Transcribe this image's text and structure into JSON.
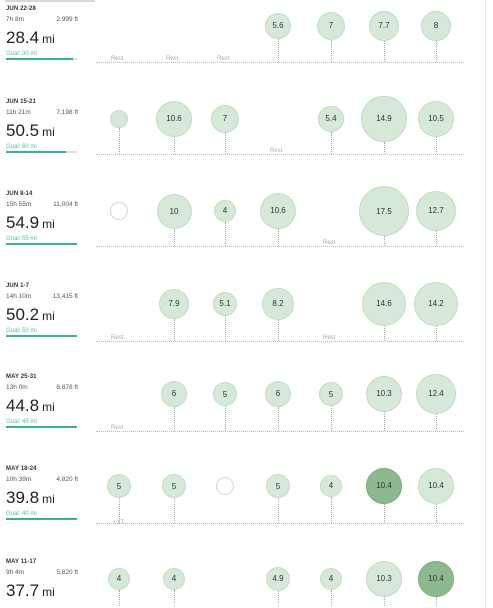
{
  "weeks": [
    {
      "label": "JUN 22-28",
      "time": "7h 8m",
      "elevation": "2,999 ft",
      "distance": "28.4",
      "unit": "mi",
      "goal": "Goal: 30 mi",
      "goal_progress": 0.95,
      "days": [
        {
          "type": "rest",
          "label": "Rest"
        },
        {
          "type": "rest",
          "label": "Rest"
        },
        {
          "type": "rest",
          "label": "Rest"
        },
        {
          "type": "run",
          "miles": 5.6,
          "label": "5.6"
        },
        {
          "type": "run",
          "miles": 7,
          "label": "7"
        },
        {
          "type": "run",
          "miles": 7.7,
          "label": "7.7"
        },
        {
          "type": "run",
          "miles": 8,
          "label": "8"
        }
      ]
    },
    {
      "label": "JUN 15-21",
      "time": "11h 21m",
      "elevation": "7,198 ft",
      "distance": "50.5",
      "unit": "mi",
      "goal": "Goal: 60 mi",
      "goal_progress": 0.84,
      "days": [
        {
          "type": "run",
          "miles": 2,
          "label": ""
        },
        {
          "type": "run",
          "miles": 10.6,
          "label": "10.6"
        },
        {
          "type": "run",
          "miles": 7,
          "label": "7"
        },
        {
          "type": "rest",
          "label": "Rest"
        },
        {
          "type": "run",
          "miles": 5.4,
          "label": "5.4"
        },
        {
          "type": "run",
          "miles": 14.9,
          "label": "14.9"
        },
        {
          "type": "run",
          "miles": 10.5,
          "label": "10.5"
        }
      ]
    },
    {
      "label": "JUN 8-14",
      "time": "15h 55m",
      "elevation": "11,004 ft",
      "distance": "54.9",
      "unit": "mi",
      "goal": "Goal: 55 mi",
      "goal_progress": 1.0,
      "days": [
        {
          "type": "empty",
          "label": ""
        },
        {
          "type": "run",
          "miles": 10,
          "label": "10"
        },
        {
          "type": "run",
          "miles": 4,
          "label": "4"
        },
        {
          "type": "run",
          "miles": 10.6,
          "label": "10.6"
        },
        {
          "type": "rest",
          "label": "Rest"
        },
        {
          "type": "run",
          "miles": 17.5,
          "label": "17.5"
        },
        {
          "type": "run",
          "miles": 12.7,
          "label": "12.7"
        }
      ]
    },
    {
      "label": "JUN 1-7",
      "time": "14h 10m",
      "elevation": "13,415 ft",
      "distance": "50.2",
      "unit": "mi",
      "goal": "Goal: 50 mi",
      "goal_progress": 1.0,
      "days": [
        {
          "type": "rest",
          "label": "Rest"
        },
        {
          "type": "run",
          "miles": 7.9,
          "label": "7.9"
        },
        {
          "type": "run",
          "miles": 5.1,
          "label": "5.1"
        },
        {
          "type": "run",
          "miles": 8.2,
          "label": "8.2"
        },
        {
          "type": "rest",
          "label": "Rest"
        },
        {
          "type": "run",
          "miles": 14.6,
          "label": "14.6"
        },
        {
          "type": "run",
          "miles": 14.2,
          "label": "14.2"
        }
      ]
    },
    {
      "label": "MAY 25-31",
      "time": "13h 0m",
      "elevation": "8,878 ft",
      "distance": "44.8",
      "unit": "mi",
      "goal": "Goal: 45 mi",
      "goal_progress": 1.0,
      "days": [
        {
          "type": "rest",
          "label": "Rest"
        },
        {
          "type": "run",
          "miles": 6,
          "label": "6"
        },
        {
          "type": "run",
          "miles": 5,
          "label": "5"
        },
        {
          "type": "run",
          "miles": 6,
          "label": "6"
        },
        {
          "type": "run",
          "miles": 5,
          "label": "5"
        },
        {
          "type": "run",
          "miles": 10.3,
          "label": "10.3"
        },
        {
          "type": "run",
          "miles": 12.4,
          "label": "12.4"
        }
      ]
    },
    {
      "label": "MAY 18-24",
      "time": "10h 39m",
      "elevation": "4,820 ft",
      "distance": "39.8",
      "unit": "mi",
      "goal": "Goal: 40 mi",
      "goal_progress": 1.0,
      "days": [
        {
          "type": "run",
          "miles": 5,
          "label": "5",
          "note": "+XT"
        },
        {
          "type": "run",
          "miles": 5,
          "label": "5"
        },
        {
          "type": "empty",
          "label": ""
        },
        {
          "type": "run",
          "miles": 5,
          "label": "5"
        },
        {
          "type": "run",
          "miles": 4,
          "label": "4"
        },
        {
          "type": "run",
          "miles": 10.4,
          "label": "10.4",
          "highlight": true
        },
        {
          "type": "run",
          "miles": 10.4,
          "label": "10.4"
        }
      ]
    },
    {
      "label": "MAY 11-17",
      "time": "9h 4m",
      "elevation": "5,820 ft",
      "distance": "37.7",
      "unit": "mi",
      "goal": "",
      "goal_progress": 0,
      "days": [
        {
          "type": "run",
          "miles": 4,
          "label": "4"
        },
        {
          "type": "run",
          "miles": 4,
          "label": "4"
        },
        {
          "type": "empty_none",
          "label": ""
        },
        {
          "type": "run",
          "miles": 4.9,
          "label": "4.9"
        },
        {
          "type": "run",
          "miles": 4,
          "label": "4"
        },
        {
          "type": "run",
          "miles": 10.3,
          "label": "10.3"
        },
        {
          "type": "run",
          "miles": 10.4,
          "label": "10.4",
          "highlight": true
        }
      ]
    }
  ]
}
